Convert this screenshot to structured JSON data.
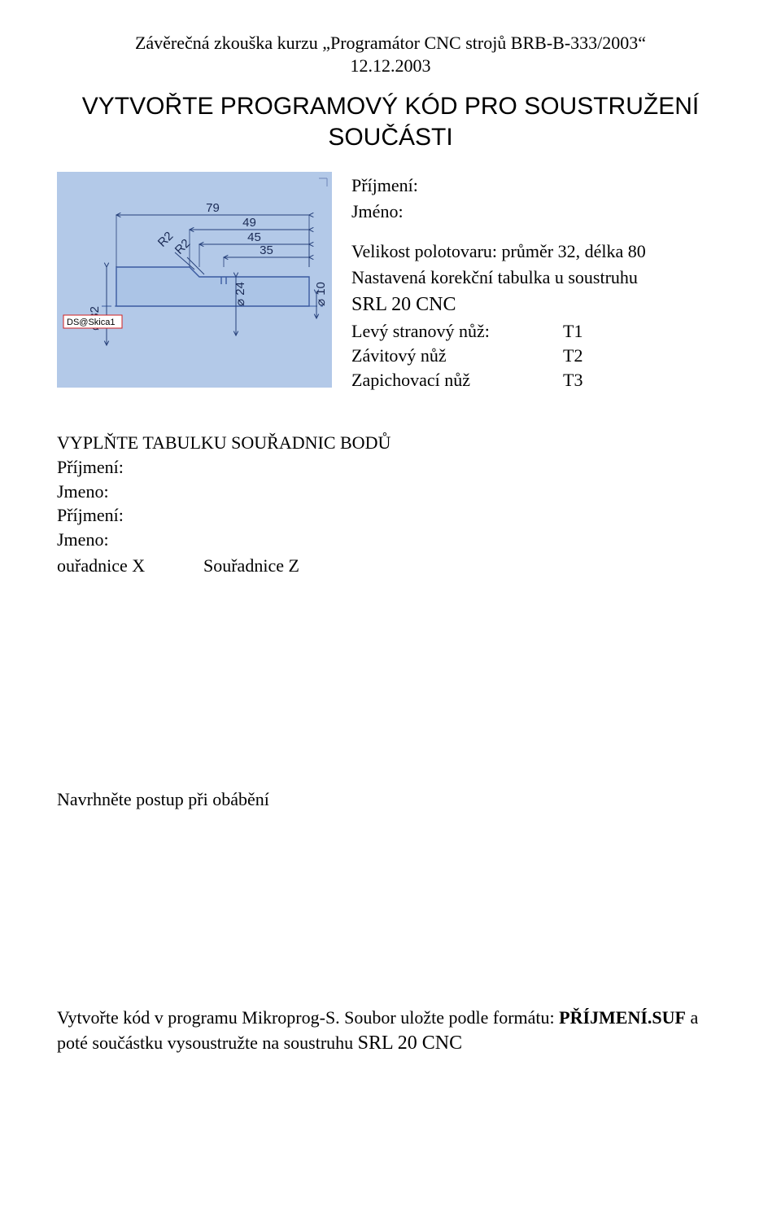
{
  "header": {
    "line1": "Závěrečná zkouška kurzu „Programátor CNC strojů BRB-B-333/2003“",
    "line2": "12.12.2003"
  },
  "title": {
    "line1": "VYTVOŘTE PROGRAMOVÝ KÓD PRO SOUSTRUŽENÍ",
    "line2": "SOUČÁSTI"
  },
  "form": {
    "surname_label": "Příjmení:",
    "name_label": "Jméno:"
  },
  "spec": {
    "blank": "Velikost polotovaru: průměr 32, délka 80",
    "correction": "Nastavená korekční tabulka u soustruhu",
    "machine": "SRL 20 CNC",
    "tools": [
      {
        "label": "Levý stranový nůž:",
        "code": "T1"
      },
      {
        "label": "Závitový nůž",
        "code": "T2"
      },
      {
        "label": "Zapichovací nůž",
        "code": "T3"
      }
    ]
  },
  "coords": {
    "heading": "VYPLŇTE TABULKU SOUŘADNIC BODŮ",
    "surname1": "Příjmení:",
    "name1": "Jmeno:",
    "surname2": "Příjmení:",
    "name2": "Jmeno:",
    "col_x": "ouřadnice X",
    "col_z": "Souřadnice Z"
  },
  "process": {
    "heading": "Navrhněte postup při obábění"
  },
  "output": {
    "text_a": "Vytvořte kód v programu Mikroprog-S. Soubor uložte podle formátu: ",
    "bold": "PŘÍJMENÍ.SUF",
    "text_b": " a poté součástku vysoustružte na soustruhu ",
    "machine": "SRL 20 CNC"
  },
  "diagram": {
    "bg_color": "#b3c9e8",
    "part_fill": "#abc4e6",
    "part_stroke": "#3a5aa0",
    "dim_stroke": "#26407a",
    "text_color": "#1a2a55",
    "origin_box_stroke": "#d02020",
    "origin_box_fill": "#ffffff",
    "origin_label": "DS@Skica1",
    "dims": {
      "d79": "79",
      "d49": "49",
      "d45": "45",
      "d35": "35",
      "d32_left": "32",
      "d24": "24",
      "d10": "10",
      "r2a": "R2",
      "r2b": "R2",
      "dia_sym": "⌀"
    },
    "stroke_width": 1.4,
    "font_size": 15
  }
}
